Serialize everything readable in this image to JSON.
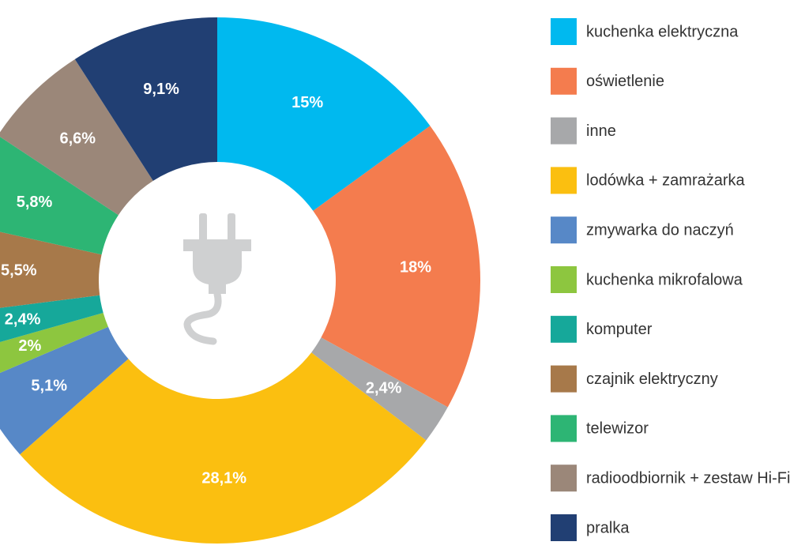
{
  "chart_data": {
    "type": "donut",
    "categories": [
      "kuchenka elektryczna",
      "oświetlenie",
      "inne",
      "lodówka + zamrażarka",
      "zmywarka do naczyń",
      "kuchenka mikrofalowa",
      "komputer",
      "czajnik elektryczny",
      "telewizor",
      "radioodbiornik + zestaw Hi-Fi",
      "pralka"
    ],
    "values": [
      15,
      18,
      2.4,
      28.1,
      5.1,
      2,
      2.4,
      5.5,
      5.8,
      6.6,
      9.1
    ],
    "value_labels": [
      "15%",
      "18%",
      "2,4%",
      "28,1%",
      "5,1%",
      "2%",
      "2,4%",
      "5,5%",
      "5,8%",
      "6,6%",
      "9,1%"
    ],
    "colors": [
      "#00b9ef",
      "#f47c4e",
      "#a7a8aa",
      "#fbbf10",
      "#5788c7",
      "#8dc63f",
      "#16a89a",
      "#a7794a",
      "#2db574",
      "#9b8779",
      "#213f73"
    ],
    "legend": "right"
  }
}
